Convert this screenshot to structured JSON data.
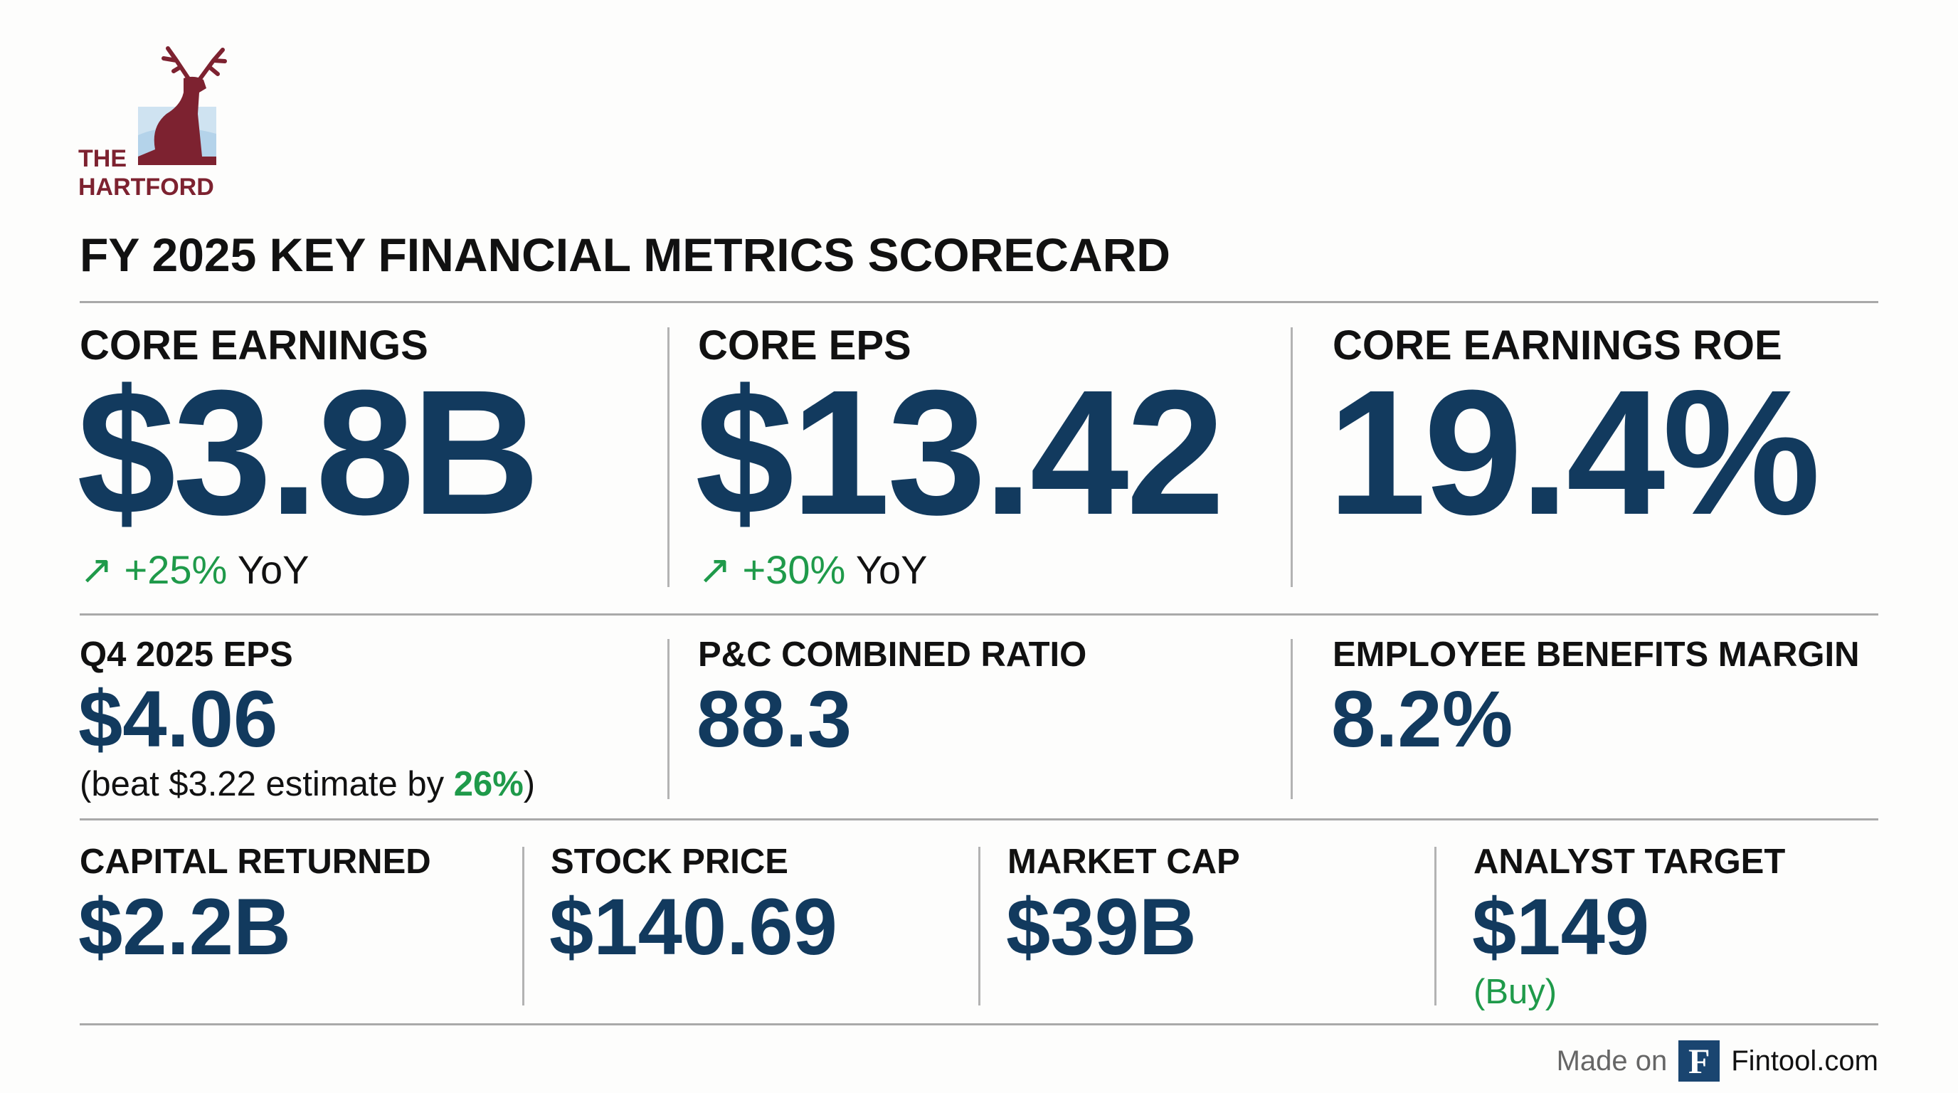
{
  "logo": {
    "text_line1": "THE",
    "text_line2": "HARTFORD",
    "color": "#7d2230"
  },
  "title": "FY 2025 KEY FINANCIAL METRICS SCORECARD",
  "row1": [
    {
      "label": "CORE EARNINGS",
      "value": "$3.8B",
      "change": "+25%",
      "change_suffix": "YoY",
      "icon": "arrow-up-right-icon"
    },
    {
      "label": "CORE EPS",
      "value": "$13.42",
      "change": "+30%",
      "change_suffix": "YoY",
      "icon": "arrow-up-right-icon"
    },
    {
      "label": "CORE EARNINGS ROE",
      "value": "19.4%"
    }
  ],
  "row2": [
    {
      "label": "Q4 2025 EPS",
      "value": "$4.06",
      "note_prefix": "(beat $3.22 estimate by ",
      "note_highlight": "26%",
      "note_suffix": ")"
    },
    {
      "label": "P&C COMBINED RATIO",
      "value": "88.3"
    },
    {
      "label": "EMPLOYEE BENEFITS MARGIN",
      "value": "8.2%"
    }
  ],
  "row3": [
    {
      "label": "CAPITAL RETURNED",
      "value": "$2.2B"
    },
    {
      "label": "STOCK PRICE",
      "value": "$140.69"
    },
    {
      "label": "MARKET CAP",
      "value": "$39B"
    },
    {
      "label": "ANALYST TARGET",
      "value": "$149",
      "note": "(Buy)"
    }
  ],
  "footer": {
    "made_on": "Made on",
    "badge": "F",
    "brand": "Fintool.com"
  },
  "colors": {
    "navy": "#123a5e",
    "green": "#1f9a4a",
    "logo_red": "#7d2230"
  }
}
